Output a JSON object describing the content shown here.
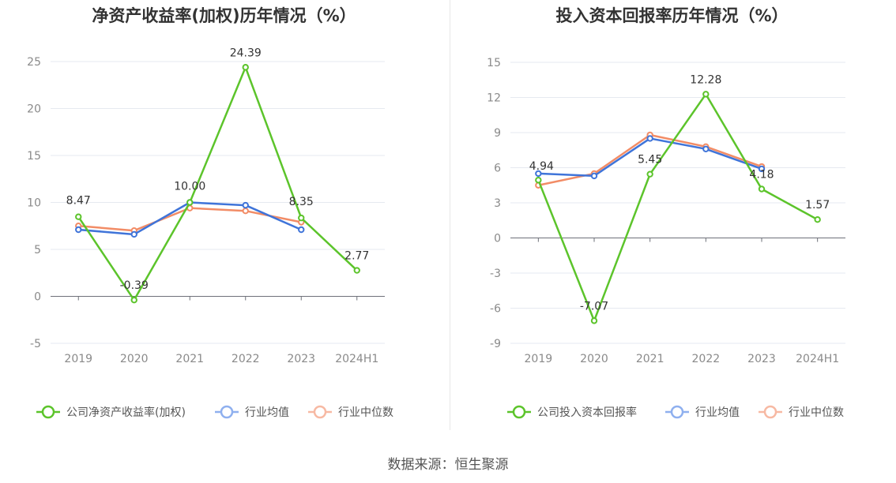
{
  "colors": {
    "company": "#5cc42b",
    "industry_avg": "#3f74d9",
    "industry_median": "#f28c66"
  },
  "source_text": "数据来源：恒生聚源",
  "chart_data": [
    {
      "type": "line",
      "title": "净资产收益率(加权)历年情况（%）",
      "categories": [
        "2019",
        "2020",
        "2021",
        "2022",
        "2023",
        "2024H1"
      ],
      "ylim": [
        -5,
        25
      ],
      "yticks": [
        -5,
        0,
        5,
        10,
        15,
        20,
        25
      ],
      "ytick_labels": [
        "-5",
        "0",
        "5",
        "10",
        "15",
        "20",
        "25"
      ],
      "grid": true,
      "legend_position": "bottom",
      "series": [
        {
          "name": "公司净资产收益率(加权)",
          "color": "#5cc42b",
          "values": [
            8.47,
            -0.39,
            10.0,
            24.39,
            8.35,
            2.77
          ],
          "labels": [
            "8.47",
            "-0.39",
            "10.00",
            "24.39",
            "8.35",
            "2.77"
          ]
        },
        {
          "name": "行业均值",
          "color": "#3f74d9",
          "values": [
            7.1,
            6.6,
            10.0,
            9.7,
            7.1,
            null
          ]
        },
        {
          "name": "行业中位数",
          "color": "#f28c66",
          "values": [
            7.5,
            7.0,
            9.4,
            9.1,
            7.9,
            null
          ]
        }
      ]
    },
    {
      "type": "line",
      "title": "投入资本回报率历年情况（%）",
      "categories": [
        "2019",
        "2020",
        "2021",
        "2022",
        "2023",
        "2024H1"
      ],
      "ylim": [
        -9,
        15
      ],
      "yticks": [
        -9,
        -6,
        -3,
        0,
        3,
        6,
        9,
        12,
        15
      ],
      "ytick_labels": [
        "-9",
        "-6",
        "-3",
        "0",
        "3",
        "6",
        "9",
        "12",
        "15"
      ],
      "grid": true,
      "legend_position": "bottom",
      "series": [
        {
          "name": "公司投入资本回报率",
          "color": "#5cc42b",
          "values": [
            4.94,
            -7.07,
            5.45,
            12.28,
            4.18,
            1.57
          ],
          "labels": [
            "4.94",
            "-7.07",
            "5.45",
            "12.28",
            "4.18",
            "1.57"
          ]
        },
        {
          "name": "行业均值",
          "color": "#3f74d9",
          "values": [
            5.5,
            5.3,
            8.5,
            7.6,
            5.9,
            null
          ]
        },
        {
          "name": "行业中位数",
          "color": "#f28c66",
          "values": [
            4.5,
            5.5,
            8.8,
            7.8,
            6.1,
            null
          ]
        }
      ]
    }
  ]
}
